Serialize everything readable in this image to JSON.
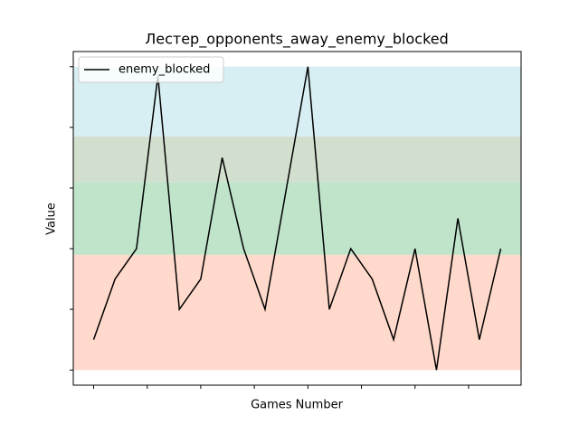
{
  "chart_data": {
    "type": "line",
    "title": "Лестер_opponents_away_enemy_blocked",
    "xlabel": "Games Number",
    "ylabel": "Value",
    "x": [
      0,
      1,
      2,
      3,
      4,
      5,
      6,
      7,
      8,
      9,
      10,
      11,
      12,
      13,
      14,
      15,
      16,
      17,
      18,
      19
    ],
    "series": [
      {
        "name": "enemy_blocked",
        "color": "#000000",
        "values": [
          1,
          3,
          4,
          9.7,
          2,
          3,
          7,
          4,
          2,
          6,
          10,
          2,
          4,
          3,
          1,
          4,
          0,
          5,
          1,
          4
        ]
      }
    ],
    "bands": [
      {
        "from": 0,
        "to": 3.8,
        "color": "#ffd9cb"
      },
      {
        "from": 3.8,
        "to": 6.2,
        "color": "#bfe4ca"
      },
      {
        "from": 6.2,
        "to": 7.7,
        "color": "#d2dfce"
      },
      {
        "from": 7.7,
        "to": 10,
        "color": "#d7eef2"
      }
    ],
    "xlim": [
      -0.95,
      19.95
    ],
    "xticks": [
      0,
      2.5,
      5,
      7.5,
      10,
      12.5,
      15,
      17.5
    ],
    "ylim": [
      -0.5,
      10.5
    ],
    "yticks": [
      0,
      2,
      4,
      6,
      8,
      10
    ],
    "legend": "upper left"
  }
}
